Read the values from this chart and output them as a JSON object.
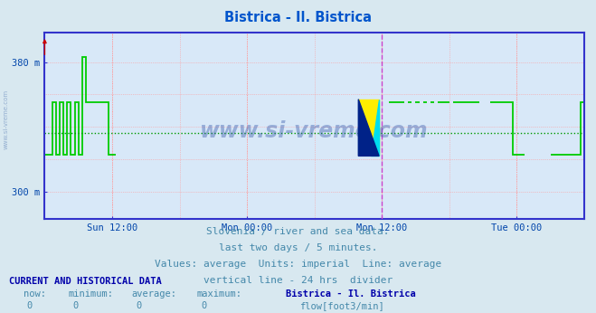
{
  "title": "Bistrica - Il. Bistrica",
  "title_color": "#0055cc",
  "background_color": "#d8e8f0",
  "plot_bg_color": "#d8e8f8",
  "yticks": [
    300,
    380
  ],
  "ytick_labels": [
    "300 m",
    "380 m"
  ],
  "ylim": [
    283,
    398
  ],
  "xlim": [
    0,
    576
  ],
  "xtick_positions": [
    72,
    216,
    360,
    504
  ],
  "xtick_labels": [
    "Sun 12:00",
    "Mon 00:00",
    "Mon 12:00",
    "Tue 00:00"
  ],
  "grid_h_color": "#ff9999",
  "grid_v_color": "#cccccc",
  "avg_line_color": "#009900",
  "avg_line_y": 336,
  "vline_24h_color": "#cc44cc",
  "vline_24h_x": 360,
  "border_color": "#3333cc",
  "arrow_color": "#cc0000",
  "line_color": "#00cc00",
  "line_width": 1.3,
  "watermark_text": "www.si-vreme.com",
  "watermark_color": "#3355aa",
  "watermark_alpha": 0.4,
  "side_watermark_color": "#6688bb",
  "side_watermark_alpha": 0.6,
  "footer_lines": [
    "Slovenia / river and sea data.",
    "last two days / 5 minutes.",
    "Values: average  Units: imperial  Line: average",
    "vertical line - 24 hrs  divider"
  ],
  "footer_color": "#4488aa",
  "footer_fontsize": 8.0,
  "current_label": "CURRENT AND HISTORICAL DATA",
  "current_color": "#0000aa",
  "legend_label": "flow[foot3/min]",
  "legend_color": "#00cc00",
  "now_min_avg_max": [
    0,
    0,
    0,
    0
  ],
  "station_name": "Bistrica - Il. Bistrica",
  "flow_data_x": [
    0,
    4,
    4,
    8,
    8,
    12,
    12,
    16,
    16,
    20,
    20,
    24,
    24,
    28,
    28,
    32,
    32,
    36,
    36,
    40,
    40,
    44,
    44,
    48,
    48,
    52,
    52,
    56,
    56,
    60,
    60,
    64,
    64,
    68,
    68,
    72,
    72,
    76,
    76,
    80,
    80,
    84,
    84,
    88,
    88,
    92,
    92,
    96,
    96,
    100,
    100,
    104,
    104,
    108,
    108,
    112,
    112,
    116,
    116,
    120,
    120,
    124,
    124,
    128,
    128,
    132,
    132,
    136,
    136,
    140,
    140,
    144,
    144,
    148,
    148,
    152,
    152,
    156,
    156,
    160,
    160,
    164,
    164,
    168,
    168,
    172,
    172,
    176,
    176,
    180,
    180,
    184,
    184,
    188,
    188,
    192,
    192,
    196,
    196,
    200,
    200,
    204,
    204,
    208,
    208,
    212,
    212,
    216,
    216,
    220,
    220,
    224,
    224,
    228,
    228,
    232,
    232,
    236,
    236,
    240,
    240,
    244,
    244,
    248,
    248,
    252,
    252,
    256,
    256,
    260,
    260,
    264,
    264,
    268,
    268,
    272,
    272,
    276,
    276,
    280,
    280,
    284,
    284,
    288,
    288,
    292,
    292,
    296,
    296,
    300,
    300,
    304,
    304,
    308,
    308,
    312,
    312,
    316,
    316,
    320,
    320,
    324,
    324,
    328,
    328,
    332,
    332,
    336,
    336,
    340,
    340,
    344,
    344,
    348,
    348,
    352,
    352,
    356,
    356,
    360,
    360,
    364,
    364,
    368,
    368,
    372,
    372,
    376,
    376,
    380,
    380,
    384,
    384,
    388,
    388,
    392,
    392,
    396,
    396,
    400,
    400,
    404,
    404,
    408,
    408,
    412,
    412,
    416,
    416,
    420,
    420,
    424,
    424,
    428,
    428,
    432,
    432,
    436,
    436,
    440,
    440,
    444,
    444,
    448,
    448,
    452,
    452,
    456,
    456,
    460,
    460,
    464,
    464,
    468,
    468,
    472,
    472,
    476,
    476,
    480,
    480,
    484,
    484,
    488,
    488,
    492,
    492,
    496,
    496,
    500,
    500,
    504,
    504,
    508,
    508,
    512,
    512,
    516,
    516,
    520,
    520,
    524,
    524,
    528,
    528,
    532,
    532,
    536,
    536,
    540,
    540,
    544,
    544,
    548,
    548,
    552,
    552,
    556,
    556,
    560,
    560,
    564,
    564,
    568,
    568,
    572,
    572,
    576
  ],
  "flow_data_y": [
    323,
    323,
    323,
    323,
    355,
    355,
    323,
    323,
    355,
    355,
    323,
    323,
    355,
    355,
    323,
    323,
    355,
    355,
    323,
    323,
    383,
    383,
    355,
    355,
    355,
    355,
    355,
    355,
    355,
    355,
    355,
    355,
    355,
    355,
    323,
    323,
    323,
    323,
    283,
    283,
    283,
    283,
    283,
    283,
    283,
    283,
    283,
    283,
    283,
    283,
    283,
    283,
    283,
    283,
    283,
    283,
    283,
    283,
    283,
    283,
    283,
    283,
    283,
    283,
    283,
    283,
    283,
    283,
    283,
    283,
    283,
    283,
    283,
    283,
    283,
    283,
    283,
    283,
    283,
    283,
    283,
    283,
    283,
    283,
    283,
    283,
    283,
    283,
    283,
    283,
    283,
    283,
    283,
    283,
    283,
    283,
    283,
    283,
    283,
    283,
    283,
    283,
    283,
    283,
    283,
    283,
    283,
    283,
    283,
    283,
    283,
    283,
    283,
    283,
    283,
    283,
    283,
    283,
    283,
    283,
    283,
    283,
    283,
    283,
    283,
    283,
    283,
    283,
    283,
    283,
    283,
    283,
    283,
    283,
    283,
    283,
    283,
    283,
    283,
    283,
    283,
    283,
    283,
    283,
    283,
    283,
    283,
    283,
    283,
    283,
    283,
    283,
    283,
    283,
    283,
    283,
    283,
    283,
    283,
    283,
    283,
    283,
    283,
    283,
    283,
    283,
    283,
    283,
    283,
    283,
    283,
    283,
    283,
    283,
    283,
    283,
    283,
    283,
    283,
    283,
    283,
    283,
    283,
    283,
    355,
    355,
    355,
    355,
    355,
    355,
    355,
    355,
    283,
    283,
    355,
    355,
    283,
    283,
    355,
    355,
    283,
    283,
    355,
    355,
    283,
    283,
    355,
    355,
    283,
    283,
    355,
    355,
    355,
    355,
    355,
    355,
    283,
    283,
    355,
    355,
    355,
    355,
    355,
    355,
    355,
    355,
    355,
    355,
    355,
    355,
    355,
    355,
    283,
    283,
    283,
    283,
    283,
    283,
    355,
    355,
    355,
    355,
    355,
    355,
    355,
    355,
    355,
    355,
    355,
    355,
    323,
    323,
    323,
    323,
    323,
    323,
    283,
    283,
    283,
    283,
    283,
    283,
    283,
    283,
    283,
    283,
    283,
    283,
    283,
    283,
    323,
    323,
    323,
    323,
    323,
    323,
    323,
    323,
    323,
    323,
    323,
    323,
    323,
    323,
    323,
    323,
    355,
    355
  ]
}
